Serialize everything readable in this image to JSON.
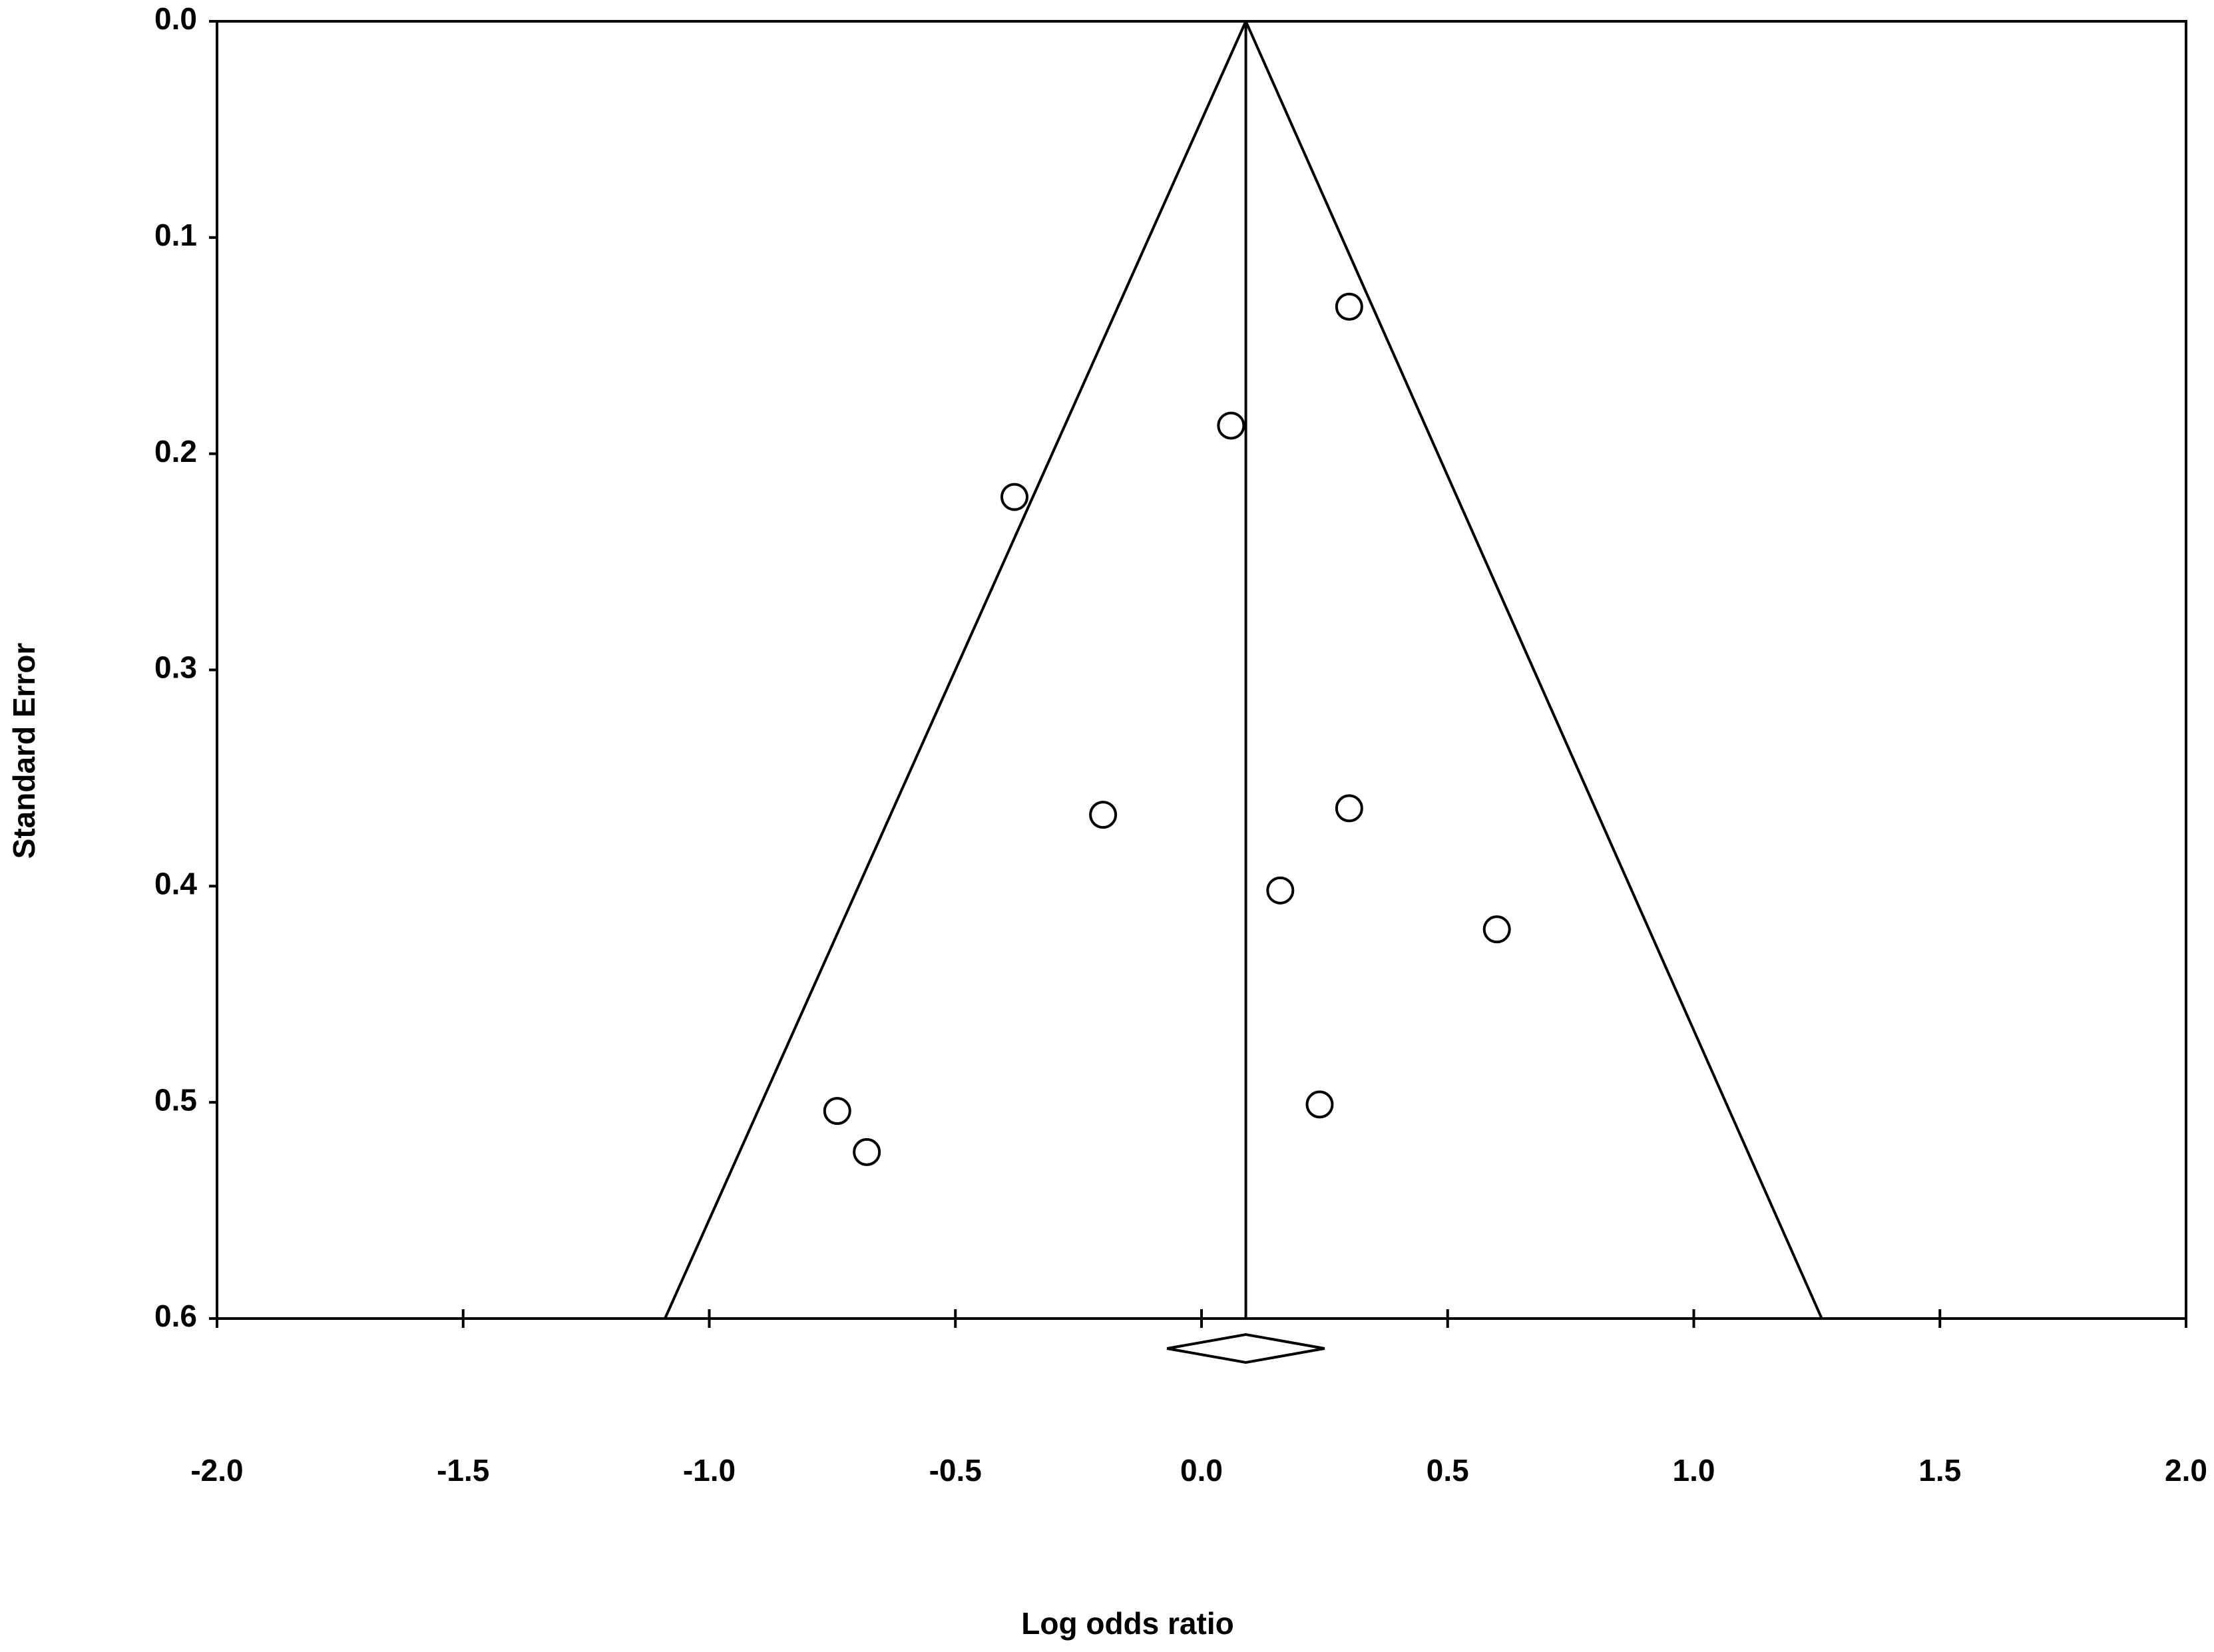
{
  "chart_data": {
    "type": "funnel",
    "x_label": "Log odds ratio",
    "y_label": "Standard Error",
    "x": [
      0.3,
      0.06,
      -0.38,
      -0.2,
      0.3,
      0.16,
      0.6,
      0.24,
      -0.74,
      -0.68
    ],
    "values": [
      0.132,
      0.187,
      0.22,
      0.367,
      0.364,
      0.402,
      0.42,
      0.501,
      0.504,
      0.523
    ],
    "xlim": [
      -2,
      2
    ],
    "xticks": [
      {
        "value": -2,
        "label": "-2.0"
      },
      -1.5,
      {
        "value": -1,
        "label": "-1.0"
      },
      -0.5,
      {
        "value": 0,
        "label": "0.0"
      },
      0.5,
      {
        "value": 1,
        "label": "1.0"
      },
      1.5,
      {
        "value": 2,
        "label": "2.0"
      }
    ],
    "ylim": [
      0,
      0.6
    ],
    "y_inverted": true,
    "yticks": [
      {
        "value": 0,
        "label": "0.0"
      },
      0.1,
      0.2,
      0.3,
      0.4,
      0.5,
      0.6
    ],
    "pooled_estimate": 0.09,
    "pooled_ci": [
      -0.07,
      0.25
    ],
    "funnel_limits": [
      -1.09,
      1.26
    ],
    "color": "#000000"
  }
}
